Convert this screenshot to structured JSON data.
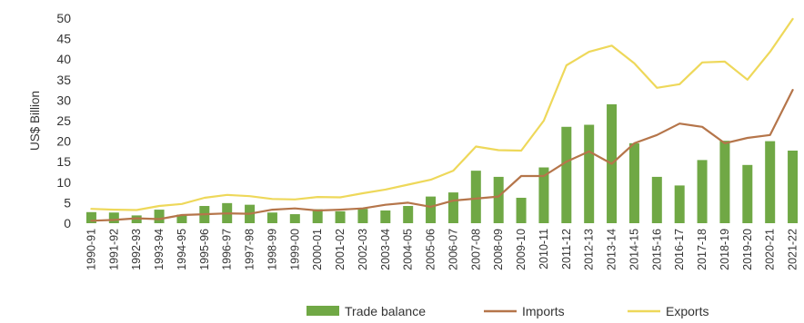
{
  "chart_data": {
    "type": "bar",
    "title": "",
    "ylabel": "US$ Billion",
    "xlabel": "",
    "ylim": [
      0,
      50
    ],
    "yticks": [
      0,
      5,
      10,
      15,
      20,
      25,
      30,
      35,
      40,
      45,
      50
    ],
    "grid": false,
    "legend_position": "bottom",
    "categories": [
      "1990-91",
      "1991-92",
      "1992-93",
      "1993-94",
      "1994-95",
      "1995-96",
      "1996-97",
      "1997-98",
      "1998-99",
      "1999-00",
      "2000-01",
      "2001-02",
      "2002-03",
      "2003-04",
      "2004-05",
      "2005-06",
      "2006-07",
      "2007-08",
      "2008-09",
      "2009-10",
      "2010-11",
      "2011-12",
      "2012-13",
      "2013-14",
      "2014-15",
      "2015-16",
      "2016-17",
      "2017-18",
      "2018-19",
      "2019-20",
      "2020-21",
      "2021-22"
    ],
    "series": [
      {
        "name": "Trade balance",
        "type": "bar",
        "color": "#70a845",
        "values": [
          2.7,
          2.6,
          1.9,
          3.3,
          2.1,
          4.2,
          4.9,
          4.5,
          2.6,
          2.2,
          3.4,
          2.9,
          3.5,
          3.1,
          4.2,
          6.5,
          7.5,
          12.8,
          11.3,
          6.2,
          13.6,
          23.5,
          24.0,
          29.0,
          19.5,
          11.3,
          9.2,
          15.4,
          20.1,
          14.2,
          20.0,
          17.7
        ]
      },
      {
        "name": "Imports",
        "type": "line",
        "color": "#b5754a",
        "values": [
          0.6,
          0.8,
          1.2,
          1.0,
          2.0,
          2.2,
          2.4,
          2.3,
          3.3,
          3.6,
          3.1,
          3.3,
          3.6,
          4.5,
          5.0,
          4.0,
          5.5,
          6.0,
          6.5,
          11.5,
          11.5,
          15.0,
          17.5,
          14.5,
          19.5,
          21.5,
          24.3,
          23.5,
          19.5,
          20.8,
          21.5,
          32.5
        ]
      },
      {
        "name": "Exports",
        "type": "line",
        "color": "#eed85a",
        "values": [
          3.5,
          3.3,
          3.2,
          4.2,
          4.7,
          6.2,
          6.9,
          6.6,
          5.9,
          5.8,
          6.4,
          6.3,
          7.3,
          8.2,
          9.4,
          10.6,
          12.8,
          18.7,
          17.8,
          17.7,
          25.0,
          38.5,
          41.8,
          43.3,
          39.0,
          33.0,
          33.9,
          39.2,
          39.4,
          35.0,
          41.8,
          49.8
        ]
      }
    ]
  }
}
